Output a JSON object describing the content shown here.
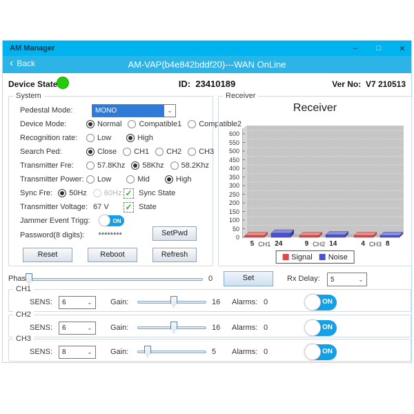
{
  "window": {
    "app_title": "AM Manager",
    "back_label": "Back",
    "nav_title": "AM-VAP(b4e842bddf20)---WAN OnLine"
  },
  "status_bar": {
    "device_state_label": "Device State:",
    "device_state_color": "#23cb0a",
    "id_label": "ID:",
    "id_value": "23410189",
    "ver_label": "Ver No:",
    "ver_value": "V7 210513"
  },
  "system": {
    "title": "System",
    "pedestal_mode": {
      "label": "Pedestal Mode:",
      "value": "MONO"
    },
    "device_mode": {
      "label": "Device Mode:",
      "options": [
        "Normal",
        "Compatible1",
        "Compatible2"
      ],
      "selected": "Normal"
    },
    "recognition_rate": {
      "label": "Recognition rate:",
      "options": [
        "Low",
        "High"
      ],
      "selected": "High"
    },
    "search_ped": {
      "label": "Search Ped:",
      "options": [
        "Close",
        "CH1",
        "CH2",
        "CH3"
      ],
      "selected": "Close"
    },
    "transmitter_fre": {
      "label": "Transmitter Fre:",
      "options": [
        "57.8Khz",
        "58Khz",
        "58.2Khz"
      ],
      "selected": "58Khz"
    },
    "transmitter_power": {
      "label": "Transmitter Power:",
      "options": [
        "Low",
        "Mid",
        "High"
      ],
      "selected": "High"
    },
    "sync_fre": {
      "label": "Sync Fre:",
      "options": [
        "50Hz",
        "60Hz"
      ],
      "selected": "50Hz",
      "disabled_option": "60Hz",
      "checkbox_label": "Sync State",
      "checkbox_checked": true
    },
    "transmitter_voltage": {
      "label": "Transmitter Voltage:",
      "value": "67 V",
      "checkbox_label": "State",
      "checkbox_checked": true
    },
    "jammer": {
      "label": "Jammer Event Trigg:",
      "toggle_label": "ON",
      "toggle_state": "on"
    },
    "password": {
      "label": "Password(8 digits):",
      "value": "********",
      "button_label": "SetPwd"
    },
    "buttons": [
      "Reset",
      "Reboot",
      "Refresh"
    ]
  },
  "receiver": {
    "group_label": "Receiver"
  },
  "chart_data": {
    "type": "bar",
    "title": "Receiver",
    "categories": [
      "CH1",
      "CH2",
      "CH3"
    ],
    "series": [
      {
        "name": "Signal",
        "color": "#d94b4b",
        "values": [
          5,
          9,
          4
        ]
      },
      {
        "name": "Noise",
        "color": "#4a52cc",
        "values": [
          24,
          14,
          8
        ]
      }
    ],
    "xlabel": "",
    "ylabel": "",
    "ylim": [
      0,
      600
    ],
    "ytick_step": 50,
    "grid": true,
    "legend_position": "bottom",
    "style": "3d-bars-on-gray-wall"
  },
  "phase": {
    "label": "Phase:",
    "value": "0",
    "percent": 0,
    "set_label": "Set",
    "rx_delay_label": "Rx Delay:",
    "rx_delay_value": "5"
  },
  "channel_labels": {
    "sens": "SENS:",
    "gain": "Gain:",
    "alarms": "Alarms:"
  },
  "channels": [
    {
      "name": "CH1",
      "sens_value": "6",
      "gain_value": "16",
      "gain_percent": 53,
      "alarms_value": "0",
      "toggle_label": "ON",
      "toggle_state": "on"
    },
    {
      "name": "CH2",
      "sens_value": "6",
      "gain_value": "16",
      "gain_percent": 53,
      "alarms_value": "0",
      "toggle_label": "ON",
      "toggle_state": "on"
    },
    {
      "name": "CH3",
      "sens_value": "8",
      "gain_value": "5",
      "gain_percent": 15,
      "alarms_value": "0",
      "toggle_label": "ON",
      "toggle_state": "on"
    }
  ]
}
